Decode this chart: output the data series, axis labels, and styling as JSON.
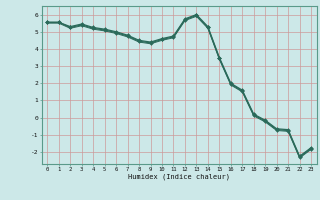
{
  "xlabel": "Humidex (Indice chaleur)",
  "background_color": "#cce8e8",
  "grid_color": "#aacccc",
  "line_color": "#2a6a5a",
  "yticks": [
    -2,
    -1,
    0,
    1,
    2,
    3,
    4,
    5,
    6
  ],
  "xticks": [
    0,
    1,
    2,
    3,
    4,
    5,
    6,
    7,
    8,
    9,
    10,
    11,
    12,
    13,
    14,
    15,
    16,
    17,
    18,
    19,
    20,
    21,
    22,
    23
  ],
  "ylim": [
    -2.7,
    6.5
  ],
  "xlim": [
    -0.5,
    23.5
  ],
  "line1_y": [
    5.55,
    5.55,
    5.3,
    5.45,
    5.25,
    5.15,
    5.0,
    4.8,
    4.5,
    4.4,
    4.6,
    4.75,
    5.75,
    6.0,
    5.3,
    3.5,
    2.0,
    1.6,
    0.2,
    -0.15,
    -0.65,
    -0.7,
    -2.25,
    -1.75
  ],
  "line2_y": [
    5.55,
    5.55,
    5.25,
    5.4,
    5.2,
    5.1,
    4.95,
    4.75,
    4.45,
    4.35,
    4.55,
    4.7,
    5.7,
    5.95,
    5.25,
    3.45,
    1.95,
    1.55,
    0.15,
    -0.2,
    -0.7,
    -0.75,
    -2.3,
    -1.8
  ],
  "line3_y": [
    5.5,
    5.5,
    5.2,
    5.35,
    5.15,
    5.05,
    4.9,
    4.7,
    4.4,
    4.3,
    4.5,
    4.65,
    5.65,
    5.9,
    5.2,
    3.4,
    1.9,
    1.5,
    0.1,
    -0.25,
    -0.75,
    -0.8,
    -2.35,
    -1.85
  ]
}
